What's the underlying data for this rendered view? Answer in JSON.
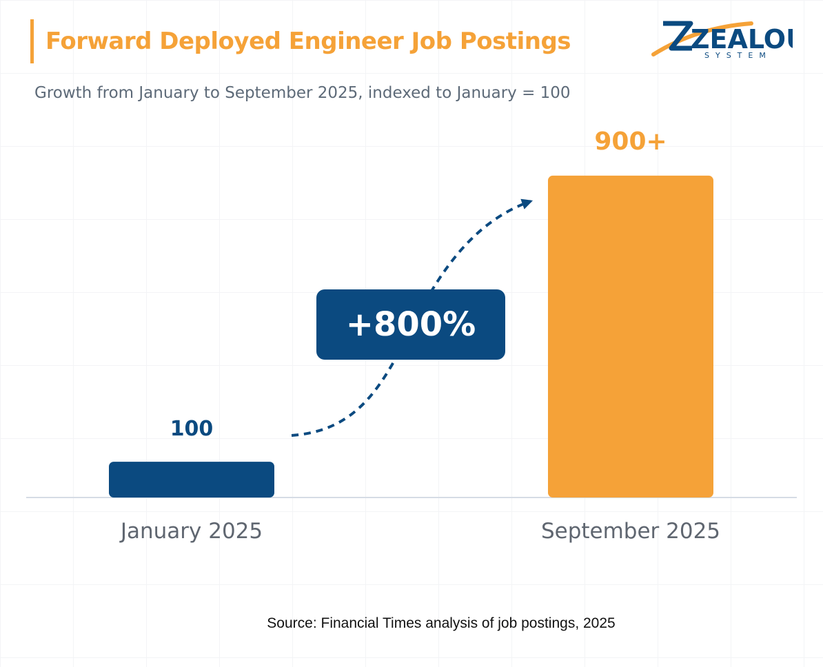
{
  "header": {
    "title": "Forward Deployed Engineer Job Postings",
    "subtitle": "Growth from January to September 2025, indexed to January = 100"
  },
  "logo": {
    "name": "ZEALOUS",
    "tagline": "SYSTEM"
  },
  "colors": {
    "accent_orange": "#f5a238",
    "navy": "#0b4a80",
    "axis_text": "#5f6670"
  },
  "chart_data": {
    "type": "bar",
    "categories": [
      "January 2025",
      "September 2025"
    ],
    "values": [
      100,
      900
    ],
    "data_labels": [
      "100",
      "900+"
    ],
    "bar_colors": [
      "#0b4a80",
      "#f5a238"
    ],
    "ylim": [
      0,
      1000
    ],
    "grid": true,
    "annotation": "+800%"
  },
  "footer": {
    "source": "Source: Financial Times analysis of job postings, 2025"
  }
}
